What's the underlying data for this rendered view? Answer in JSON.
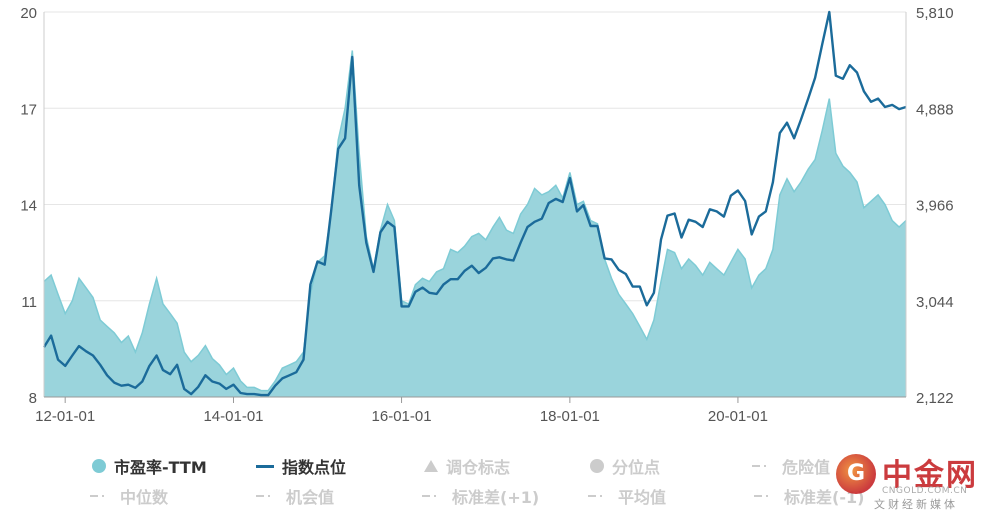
{
  "chart_data": {
    "type": "area",
    "left_axis": {
      "ticks": [
        "20",
        "17",
        "14",
        "11",
        "8"
      ],
      "range": [
        8,
        20
      ]
    },
    "right_axis": {
      "ticks": [
        "5,810",
        "4,888",
        "3,966",
        "3,044",
        "2,122"
      ],
      "range": [
        2122,
        5810
      ]
    },
    "x_ticks": [
      "12-01-01",
      "14-01-01",
      "16-01-01",
      "18-01-01",
      "20-01-01"
    ],
    "x_range": [
      "2011-10-01",
      "2021-12-31"
    ],
    "grid": true,
    "colors": {
      "pe_fill": "#9ad4dc",
      "pe_line": "#7ecbd5",
      "index_line": "#1b6b9a",
      "grid": "#e6e6e6"
    },
    "series": [
      {
        "name": "市盈率-TTM",
        "axis": "left",
        "points": [
          [
            "2011-10-01",
            11.6
          ],
          [
            "2011-11-01",
            11.8
          ],
          [
            "2011-12-01",
            11.2
          ],
          [
            "2012-01-01",
            10.6
          ],
          [
            "2012-02-01",
            11.0
          ],
          [
            "2012-03-01",
            11.7
          ],
          [
            "2012-04-01",
            11.4
          ],
          [
            "2012-05-01",
            11.1
          ],
          [
            "2012-06-01",
            10.4
          ],
          [
            "2012-07-01",
            10.2
          ],
          [
            "2012-08-01",
            10.0
          ],
          [
            "2012-09-01",
            9.7
          ],
          [
            "2012-10-01",
            9.9
          ],
          [
            "2012-11-01",
            9.4
          ],
          [
            "2012-12-01",
            10.0
          ],
          [
            "2013-01-01",
            10.9
          ],
          [
            "2013-02-01",
            11.7
          ],
          [
            "2013-03-01",
            10.9
          ],
          [
            "2013-04-01",
            10.6
          ],
          [
            "2013-05-01",
            10.3
          ],
          [
            "2013-06-01",
            9.4
          ],
          [
            "2013-07-01",
            9.1
          ],
          [
            "2013-08-01",
            9.3
          ],
          [
            "2013-09-01",
            9.6
          ],
          [
            "2013-10-01",
            9.2
          ],
          [
            "2013-11-01",
            9.0
          ],
          [
            "2013-12-01",
            8.7
          ],
          [
            "2014-01-01",
            8.9
          ],
          [
            "2014-02-01",
            8.5
          ],
          [
            "2014-03-01",
            8.3
          ],
          [
            "2014-04-01",
            8.3
          ],
          [
            "2014-05-01",
            8.2
          ],
          [
            "2014-06-01",
            8.2
          ],
          [
            "2014-07-01",
            8.5
          ],
          [
            "2014-08-01",
            8.9
          ],
          [
            "2014-09-01",
            9.0
          ],
          [
            "2014-10-01",
            9.1
          ],
          [
            "2014-11-01",
            9.4
          ],
          [
            "2014-12-01",
            11.2
          ],
          [
            "2015-01-01",
            12.2
          ],
          [
            "2015-02-01",
            12.4
          ],
          [
            "2015-03-01",
            13.7
          ],
          [
            "2015-04-01",
            16.0
          ],
          [
            "2015-05-01",
            17.0
          ],
          [
            "2015-06-01",
            18.8
          ],
          [
            "2015-07-01",
            15.6
          ],
          [
            "2015-08-01",
            13.0
          ],
          [
            "2015-09-01",
            12.0
          ],
          [
            "2015-10-01",
            13.2
          ],
          [
            "2015-11-01",
            14.0
          ],
          [
            "2015-12-01",
            13.5
          ],
          [
            "2016-01-01",
            11.0
          ],
          [
            "2016-02-01",
            10.9
          ],
          [
            "2016-03-01",
            11.5
          ],
          [
            "2016-04-01",
            11.7
          ],
          [
            "2016-05-01",
            11.6
          ],
          [
            "2016-06-01",
            11.9
          ],
          [
            "2016-07-01",
            12.0
          ],
          [
            "2016-08-01",
            12.6
          ],
          [
            "2016-09-01",
            12.5
          ],
          [
            "2016-10-01",
            12.7
          ],
          [
            "2016-11-01",
            13.0
          ],
          [
            "2016-12-01",
            13.1
          ],
          [
            "2017-01-01",
            12.9
          ],
          [
            "2017-02-01",
            13.3
          ],
          [
            "2017-03-01",
            13.6
          ],
          [
            "2017-04-01",
            13.2
          ],
          [
            "2017-05-01",
            13.1
          ],
          [
            "2017-06-01",
            13.7
          ],
          [
            "2017-07-01",
            14.0
          ],
          [
            "2017-08-01",
            14.5
          ],
          [
            "2017-09-01",
            14.3
          ],
          [
            "2017-10-01",
            14.4
          ],
          [
            "2017-11-01",
            14.6
          ],
          [
            "2017-12-01",
            14.2
          ],
          [
            "2018-01-01",
            15.0
          ],
          [
            "2018-02-01",
            14.0
          ],
          [
            "2018-03-01",
            14.1
          ],
          [
            "2018-04-01",
            13.5
          ],
          [
            "2018-05-01",
            13.4
          ],
          [
            "2018-06-01",
            12.3
          ],
          [
            "2018-07-01",
            11.7
          ],
          [
            "2018-08-01",
            11.2
          ],
          [
            "2018-09-01",
            10.9
          ],
          [
            "2018-10-01",
            10.6
          ],
          [
            "2018-11-01",
            10.2
          ],
          [
            "2018-12-01",
            9.8
          ],
          [
            "2019-01-01",
            10.4
          ],
          [
            "2019-02-01",
            11.6
          ],
          [
            "2019-03-01",
            12.6
          ],
          [
            "2019-04-01",
            12.5
          ],
          [
            "2019-05-01",
            12.0
          ],
          [
            "2019-06-01",
            12.3
          ],
          [
            "2019-07-01",
            12.1
          ],
          [
            "2019-08-01",
            11.8
          ],
          [
            "2019-09-01",
            12.2
          ],
          [
            "2019-10-01",
            12.0
          ],
          [
            "2019-11-01",
            11.8
          ],
          [
            "2019-12-01",
            12.2
          ],
          [
            "2020-01-01",
            12.6
          ],
          [
            "2020-02-01",
            12.3
          ],
          [
            "2020-03-01",
            11.4
          ],
          [
            "2020-04-01",
            11.8
          ],
          [
            "2020-05-01",
            12.0
          ],
          [
            "2020-06-01",
            12.6
          ],
          [
            "2020-07-01",
            14.3
          ],
          [
            "2020-08-01",
            14.8
          ],
          [
            "2020-09-01",
            14.4
          ],
          [
            "2020-10-01",
            14.7
          ],
          [
            "2020-11-01",
            15.1
          ],
          [
            "2020-12-01",
            15.4
          ],
          [
            "2021-01-01",
            16.3
          ],
          [
            "2021-02-01",
            17.3
          ],
          [
            "2021-03-01",
            15.6
          ],
          [
            "2021-04-01",
            15.2
          ],
          [
            "2021-05-01",
            15.0
          ],
          [
            "2021-06-01",
            14.7
          ],
          [
            "2021-07-01",
            13.9
          ],
          [
            "2021-08-01",
            14.1
          ],
          [
            "2021-09-01",
            14.3
          ],
          [
            "2021-10-01",
            14.0
          ],
          [
            "2021-11-01",
            13.5
          ],
          [
            "2021-12-01",
            13.3
          ],
          [
            "2021-12-31",
            13.5
          ]
        ]
      },
      {
        "name": "指数点位",
        "axis": "right",
        "points": [
          [
            "2011-10-01",
            2600
          ],
          [
            "2011-11-01",
            2710
          ],
          [
            "2011-12-01",
            2480
          ],
          [
            "2012-01-01",
            2420
          ],
          [
            "2012-02-01",
            2520
          ],
          [
            "2012-03-01",
            2610
          ],
          [
            "2012-04-01",
            2560
          ],
          [
            "2012-05-01",
            2520
          ],
          [
            "2012-06-01",
            2430
          ],
          [
            "2012-07-01",
            2330
          ],
          [
            "2012-08-01",
            2260
          ],
          [
            "2012-09-01",
            2230
          ],
          [
            "2012-10-01",
            2240
          ],
          [
            "2012-11-01",
            2210
          ],
          [
            "2012-12-01",
            2270
          ],
          [
            "2013-01-01",
            2420
          ],
          [
            "2013-02-01",
            2520
          ],
          [
            "2013-03-01",
            2380
          ],
          [
            "2013-04-01",
            2340
          ],
          [
            "2013-05-01",
            2430
          ],
          [
            "2013-06-01",
            2200
          ],
          [
            "2013-07-01",
            2150
          ],
          [
            "2013-08-01",
            2220
          ],
          [
            "2013-09-01",
            2330
          ],
          [
            "2013-10-01",
            2270
          ],
          [
            "2013-11-01",
            2250
          ],
          [
            "2013-12-01",
            2200
          ],
          [
            "2014-01-01",
            2240
          ],
          [
            "2014-02-01",
            2160
          ],
          [
            "2014-03-01",
            2150
          ],
          [
            "2014-04-01",
            2150
          ],
          [
            "2014-05-01",
            2140
          ],
          [
            "2014-06-01",
            2140
          ],
          [
            "2014-07-01",
            2230
          ],
          [
            "2014-08-01",
            2300
          ],
          [
            "2014-09-01",
            2330
          ],
          [
            "2014-10-01",
            2360
          ],
          [
            "2014-11-01",
            2480
          ],
          [
            "2014-12-01",
            3200
          ],
          [
            "2015-01-01",
            3420
          ],
          [
            "2015-02-01",
            3390
          ],
          [
            "2015-03-01",
            3900
          ],
          [
            "2015-04-01",
            4500
          ],
          [
            "2015-05-01",
            4600
          ],
          [
            "2015-06-01",
            5380
          ],
          [
            "2015-07-01",
            4150
          ],
          [
            "2015-08-01",
            3600
          ],
          [
            "2015-09-01",
            3320
          ],
          [
            "2015-10-01",
            3700
          ],
          [
            "2015-11-01",
            3800
          ],
          [
            "2015-12-01",
            3750
          ],
          [
            "2016-01-01",
            2990
          ],
          [
            "2016-02-01",
            2990
          ],
          [
            "2016-03-01",
            3130
          ],
          [
            "2016-04-01",
            3170
          ],
          [
            "2016-05-01",
            3120
          ],
          [
            "2016-06-01",
            3110
          ],
          [
            "2016-07-01",
            3200
          ],
          [
            "2016-08-01",
            3250
          ],
          [
            "2016-09-01",
            3250
          ],
          [
            "2016-10-01",
            3330
          ],
          [
            "2016-11-01",
            3380
          ],
          [
            "2016-12-01",
            3310
          ],
          [
            "2017-01-01",
            3360
          ],
          [
            "2017-02-01",
            3450
          ],
          [
            "2017-03-01",
            3460
          ],
          [
            "2017-04-01",
            3440
          ],
          [
            "2017-05-01",
            3430
          ],
          [
            "2017-06-01",
            3600
          ],
          [
            "2017-07-01",
            3750
          ],
          [
            "2017-08-01",
            3800
          ],
          [
            "2017-09-01",
            3830
          ],
          [
            "2017-10-01",
            3980
          ],
          [
            "2017-11-01",
            4020
          ],
          [
            "2017-12-01",
            3990
          ],
          [
            "2018-01-01",
            4220
          ],
          [
            "2018-02-01",
            3900
          ],
          [
            "2018-03-01",
            3960
          ],
          [
            "2018-04-01",
            3760
          ],
          [
            "2018-05-01",
            3760
          ],
          [
            "2018-06-01",
            3450
          ],
          [
            "2018-07-01",
            3440
          ],
          [
            "2018-08-01",
            3340
          ],
          [
            "2018-09-01",
            3300
          ],
          [
            "2018-10-01",
            3180
          ],
          [
            "2018-11-01",
            3180
          ],
          [
            "2018-12-01",
            3000
          ],
          [
            "2019-01-01",
            3120
          ],
          [
            "2019-02-01",
            3630
          ],
          [
            "2019-03-01",
            3860
          ],
          [
            "2019-04-01",
            3880
          ],
          [
            "2019-05-01",
            3650
          ],
          [
            "2019-06-01",
            3820
          ],
          [
            "2019-07-01",
            3800
          ],
          [
            "2019-08-01",
            3750
          ],
          [
            "2019-09-01",
            3920
          ],
          [
            "2019-10-01",
            3900
          ],
          [
            "2019-11-01",
            3850
          ],
          [
            "2019-12-01",
            4050
          ],
          [
            "2020-01-01",
            4100
          ],
          [
            "2020-02-01",
            4000
          ],
          [
            "2020-03-01",
            3680
          ],
          [
            "2020-04-01",
            3850
          ],
          [
            "2020-05-01",
            3900
          ],
          [
            "2020-06-01",
            4180
          ],
          [
            "2020-07-01",
            4650
          ],
          [
            "2020-08-01",
            4750
          ],
          [
            "2020-09-01",
            4600
          ],
          [
            "2020-10-01",
            4780
          ],
          [
            "2020-11-01",
            4980
          ],
          [
            "2020-12-01",
            5180
          ],
          [
            "2021-01-01",
            5500
          ],
          [
            "2021-02-01",
            5810
          ],
          [
            "2021-03-01",
            5200
          ],
          [
            "2021-04-01",
            5170
          ],
          [
            "2021-05-01",
            5300
          ],
          [
            "2021-06-01",
            5230
          ],
          [
            "2021-07-01",
            5050
          ],
          [
            "2021-08-01",
            4950
          ],
          [
            "2021-09-01",
            4980
          ],
          [
            "2021-10-01",
            4900
          ],
          [
            "2021-11-01",
            4920
          ],
          [
            "2021-12-01",
            4880
          ],
          [
            "2021-12-31",
            4900
          ]
        ]
      }
    ]
  },
  "legend": [
    {
      "label": "市盈率-TTM",
      "symbol": "circle",
      "color": "#7ecbd5",
      "active": true
    },
    {
      "label": "指数点位",
      "symbol": "line",
      "color": "#1b6b9a",
      "active": true
    },
    {
      "label": "调仓标志",
      "symbol": "triangle",
      "color": "#cccccc",
      "active": false
    },
    {
      "label": "分位点",
      "symbol": "circle",
      "color": "#cccccc",
      "active": false
    },
    {
      "label": "危险值",
      "symbol": "dash",
      "color": "#cccccc",
      "active": false
    },
    {
      "label": "中位数",
      "symbol": "dash",
      "color": "#cccccc",
      "active": false
    },
    {
      "label": "机会值",
      "symbol": "dash",
      "color": "#cccccc",
      "active": false
    },
    {
      "label": "标准差(+1)",
      "symbol": "dash",
      "color": "#cccccc",
      "active": false
    },
    {
      "label": "平均值",
      "symbol": "dash",
      "color": "#cccccc",
      "active": false
    },
    {
      "label": "标准差(-1)",
      "symbol": "dash",
      "color": "#cccccc",
      "active": false
    }
  ],
  "watermark": {
    "name": "中金网",
    "domain": "CNGOLD.COM.CN",
    "tagline": "文财经新媒体"
  }
}
